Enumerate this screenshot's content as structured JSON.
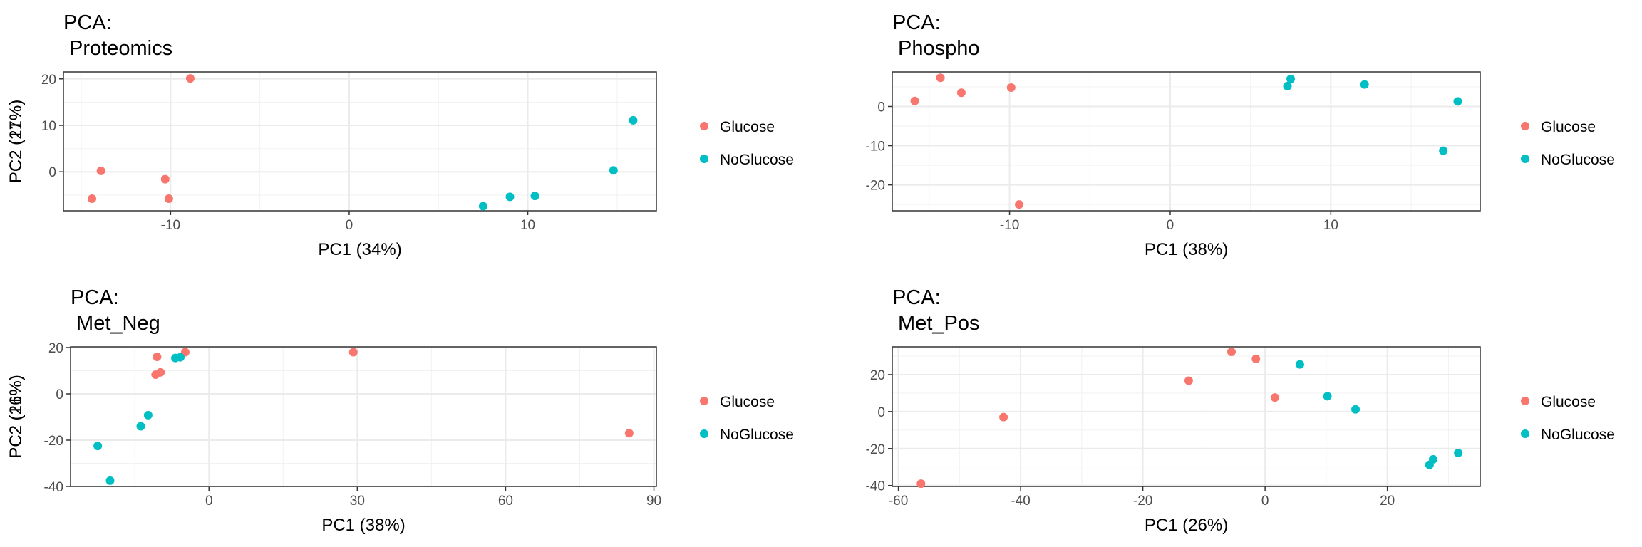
{
  "legend": {
    "entries": [
      {
        "label": "Glucose",
        "color": "#F8766D"
      },
      {
        "label": "NoGlucose",
        "color": "#00BFC4"
      }
    ]
  },
  "chart_data": [
    {
      "type": "scatter",
      "title_line1": "PCA:",
      "title_line2": "Proteomics",
      "xlabel": "PC1 (34%)",
      "ylabel": "PC2 (17%)",
      "xlim": [
        -16.0,
        17.2
      ],
      "ylim": [
        -8.4,
        21.5
      ],
      "xticks": [
        -10,
        0,
        10
      ],
      "yticks": [
        0,
        10,
        20
      ],
      "grid": true,
      "legend_position": "right",
      "series": [
        {
          "name": "Glucose",
          "color": "#F8766D",
          "points": [
            [
              -14.4,
              -5.8
            ],
            [
              -13.9,
              0.2
            ],
            [
              -10.3,
              -1.6
            ],
            [
              -10.1,
              -5.8
            ],
            [
              -8.9,
              20.1
            ]
          ]
        },
        {
          "name": "NoGlucose",
          "color": "#00BFC4",
          "points": [
            [
              7.5,
              -7.4
            ],
            [
              9.0,
              -5.4
            ],
            [
              10.4,
              -5.2
            ],
            [
              14.8,
              0.3
            ],
            [
              15.9,
              11.1
            ]
          ]
        }
      ]
    },
    {
      "type": "scatter",
      "title_line1": "PCA:",
      "title_line2": "Phospho",
      "xlabel": "PC1 (38%)",
      "ylabel": "PC2 (21%)",
      "xlim": [
        -17.3,
        19.3
      ],
      "ylim": [
        -26.6,
        8.8
      ],
      "xticks": [
        -10,
        0,
        10
      ],
      "yticks": [
        -20,
        -10,
        0
      ],
      "grid": true,
      "legend_position": "right",
      "series": [
        {
          "name": "Glucose",
          "color": "#F8766D",
          "points": [
            [
              -15.9,
              1.4
            ],
            [
              -14.3,
              7.3
            ],
            [
              -13.0,
              3.5
            ],
            [
              -9.9,
              4.8
            ],
            [
              -9.4,
              -25.0
            ]
          ]
        },
        {
          "name": "NoGlucose",
          "color": "#00BFC4",
          "points": [
            [
              7.3,
              5.2
            ],
            [
              7.5,
              7.0
            ],
            [
              12.1,
              5.6
            ],
            [
              17.0,
              -11.3
            ],
            [
              17.9,
              1.3
            ]
          ]
        }
      ]
    },
    {
      "type": "scatter",
      "title_line1": "PCA:",
      "title_line2": "Met_Neg",
      "xlabel": "PC1 (38%)",
      "ylabel": "PC2 (16%)",
      "xlim": [
        -28.0,
        90.5
      ],
      "ylim": [
        -40.0,
        20.3
      ],
      "xticks": [
        0,
        30,
        60,
        90
      ],
      "yticks": [
        -40,
        -20,
        0,
        20
      ],
      "grid": true,
      "legend_position": "right",
      "series": [
        {
          "name": "Glucose",
          "color": "#F8766D",
          "points": [
            [
              -10.5,
              16.0
            ],
            [
              -10.8,
              8.3
            ],
            [
              -9.8,
              9.3
            ],
            [
              -4.8,
              18.0
            ],
            [
              29.2,
              18.0
            ],
            [
              85.0,
              -17.0
            ]
          ]
        },
        {
          "name": "NoGlucose",
          "color": "#00BFC4",
          "points": [
            [
              -22.5,
              -22.5
            ],
            [
              -20.0,
              -37.5
            ],
            [
              -13.8,
              -14.0
            ],
            [
              -12.3,
              -9.2
            ],
            [
              -6.8,
              15.5
            ],
            [
              -5.8,
              15.8
            ]
          ]
        }
      ]
    },
    {
      "type": "scatter",
      "title_line1": "PCA:",
      "title_line2": "Met_Pos",
      "xlabel": "PC1 (26%)",
      "ylabel": "PC2 (21%)",
      "xlim": [
        -61.0,
        35.2
      ],
      "ylim": [
        -40.5,
        35.0
      ],
      "xticks": [
        -60,
        -40,
        -20,
        0,
        20
      ],
      "yticks": [
        -40,
        -20,
        0,
        20
      ],
      "grid": true,
      "legend_position": "right",
      "series": [
        {
          "name": "Glucose",
          "color": "#F8766D",
          "points": [
            [
              -56.3,
              -39.0
            ],
            [
              -42.8,
              -3.0
            ],
            [
              -12.5,
              16.7
            ],
            [
              -5.5,
              32.3
            ],
            [
              -1.5,
              28.5
            ],
            [
              1.6,
              7.6
            ]
          ]
        },
        {
          "name": "NoGlucose",
          "color": "#00BFC4",
          "points": [
            [
              5.7,
              25.5
            ],
            [
              10.2,
              8.3
            ],
            [
              14.8,
              1.2
            ],
            [
              26.9,
              -28.8
            ],
            [
              27.5,
              -25.8
            ],
            [
              31.6,
              -22.4
            ]
          ]
        }
      ]
    }
  ]
}
